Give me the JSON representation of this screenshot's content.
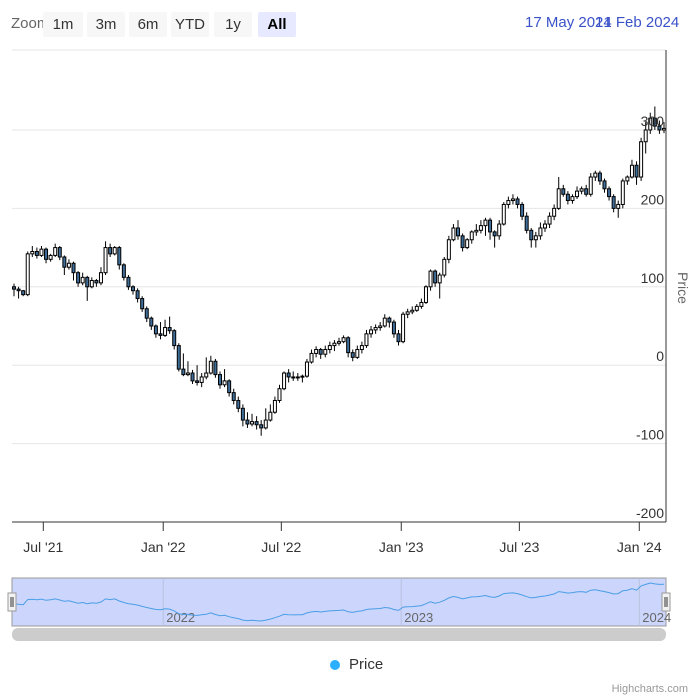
{
  "range_selector": {
    "zoom_label": "Zoom",
    "buttons": [
      {
        "label": "1m"
      },
      {
        "label": "3m"
      },
      {
        "label": "6m"
      },
      {
        "label": "YTD"
      },
      {
        "label": "1y"
      },
      {
        "label": "All",
        "selected": true
      }
    ],
    "from": "17 May 2021",
    "to": "14 Feb 2024"
  },
  "legend": {
    "label": "Price",
    "color": "#2caffe"
  },
  "credits": "Highcharts.com",
  "colors": {
    "up": "#ffffff",
    "down": "#3f6e9a",
    "grid": "#e6e6e6",
    "navigator_fill": "#ccd6fc",
    "navigator_line": "#4a9ee6"
  },
  "chart_data": {
    "type": "candlestick",
    "series_name": "Price",
    "interval": "week",
    "start": "17 May 2021",
    "end": "14 Feb 2024",
    "ylabel": "Price",
    "ylim": [
      -200,
      402
    ],
    "yticks": [
      -200,
      -100,
      0,
      100,
      200,
      300
    ],
    "ytick_labels": [
      "-200",
      "-100",
      "0",
      "100",
      "200",
      "300"
    ],
    "xticks": [
      {
        "label": "Jul '21",
        "week": 6.4
      },
      {
        "label": "Jan '22",
        "week": 32.6
      },
      {
        "label": "Jul '22",
        "week": 58.4
      },
      {
        "label": "Jan '23",
        "week": 84.6
      },
      {
        "label": "Jul '23",
        "week": 110.4
      },
      {
        "label": "Jan '24",
        "week": 136.6
      }
    ],
    "navigator_ticks": [
      {
        "label": "2022",
        "week": 32.6
      },
      {
        "label": "2023",
        "week": 84.6
      },
      {
        "label": "2024",
        "week": 136.6
      }
    ],
    "ohlc": [
      [
        100,
        104,
        88,
        97
      ],
      [
        97,
        100,
        85,
        95
      ],
      [
        95,
        96,
        88,
        90
      ],
      [
        90,
        145,
        88,
        142
      ],
      [
        142,
        152,
        138,
        145
      ],
      [
        145,
        150,
        136,
        140
      ],
      [
        140,
        152,
        138,
        148
      ],
      [
        148,
        150,
        130,
        135
      ],
      [
        135,
        142,
        132,
        140
      ],
      [
        140,
        155,
        138,
        150
      ],
      [
        150,
        152,
        134,
        138
      ],
      [
        138,
        140,
        115,
        125
      ],
      [
        125,
        135,
        122,
        130
      ],
      [
        130,
        132,
        108,
        118
      ],
      [
        118,
        120,
        100,
        105
      ],
      [
        105,
        118,
        102,
        112
      ],
      [
        112,
        114,
        82,
        100
      ],
      [
        100,
        112,
        98,
        108
      ],
      [
        108,
        110,
        100,
        105
      ],
      [
        105,
        125,
        102,
        118
      ],
      [
        118,
        158,
        115,
        150
      ],
      [
        150,
        155,
        138,
        142
      ],
      [
        142,
        152,
        140,
        150
      ],
      [
        150,
        152,
        122,
        128
      ],
      [
        128,
        130,
        108,
        112
      ],
      [
        112,
        115,
        96,
        100
      ],
      [
        100,
        102,
        90,
        95
      ],
      [
        95,
        98,
        80,
        85
      ],
      [
        85,
        88,
        68,
        72
      ],
      [
        72,
        75,
        55,
        60
      ],
      [
        60,
        62,
        45,
        50
      ],
      [
        50,
        52,
        35,
        40
      ],
      [
        40,
        55,
        33,
        38
      ],
      [
        38,
        58,
        36,
        48
      ],
      [
        48,
        62,
        40,
        44
      ],
      [
        44,
        46,
        20,
        25
      ],
      [
        25,
        28,
        -8,
        -5
      ],
      [
        -5,
        15,
        -14,
        -12
      ],
      [
        -12,
        5,
        -14,
        -10
      ],
      [
        -10,
        -6,
        -24,
        -20
      ],
      [
        -20,
        0,
        -26,
        -22
      ],
      [
        -22,
        -10,
        -28,
        -15
      ],
      [
        -15,
        10,
        -18,
        -10
      ],
      [
        -10,
        12,
        -12,
        5
      ],
      [
        5,
        8,
        -16,
        -12
      ],
      [
        -12,
        -8,
        -30,
        -25
      ],
      [
        -25,
        -5,
        -28,
        -20
      ],
      [
        -20,
        -18,
        -40,
        -35
      ],
      [
        -35,
        -30,
        -50,
        -45
      ],
      [
        -45,
        -40,
        -60,
        -55
      ],
      [
        -55,
        -50,
        -78,
        -70
      ],
      [
        -70,
        -60,
        -80,
        -75
      ],
      [
        -75,
        -62,
        -78,
        -72
      ],
      [
        -72,
        -65,
        -82,
        -76
      ],
      [
        -76,
        -70,
        -90,
        -80
      ],
      [
        -80,
        -55,
        -82,
        -70
      ],
      [
        -70,
        -50,
        -72,
        -60
      ],
      [
        -60,
        -40,
        -62,
        -45
      ],
      [
        -45,
        -25,
        -48,
        -30
      ],
      [
        -30,
        -8,
        -32,
        -10
      ],
      [
        -10,
        -5,
        -22,
        -15
      ],
      [
        -15,
        -8,
        -20,
        -16
      ],
      [
        -16,
        -10,
        -20,
        -15
      ],
      [
        -15,
        -12,
        -22,
        -14
      ],
      [
        -14,
        8,
        -16,
        4
      ],
      [
        4,
        20,
        2,
        15
      ],
      [
        15,
        24,
        10,
        20
      ],
      [
        20,
        22,
        8,
        14
      ],
      [
        14,
        25,
        10,
        20
      ],
      [
        20,
        30,
        15,
        25
      ],
      [
        25,
        32,
        18,
        28
      ],
      [
        28,
        35,
        25,
        30
      ],
      [
        30,
        38,
        28,
        35
      ],
      [
        35,
        37,
        10,
        16
      ],
      [
        16,
        20,
        5,
        10
      ],
      [
        10,
        25,
        8,
        20
      ],
      [
        20,
        30,
        15,
        25
      ],
      [
        25,
        45,
        22,
        40
      ],
      [
        40,
        50,
        35,
        45
      ],
      [
        45,
        52,
        40,
        48
      ],
      [
        48,
        55,
        44,
        50
      ],
      [
        50,
        65,
        48,
        60
      ],
      [
        60,
        62,
        48,
        55
      ],
      [
        55,
        58,
        35,
        40
      ],
      [
        40,
        45,
        25,
        30
      ],
      [
        30,
        68,
        28,
        65
      ],
      [
        65,
        72,
        60,
        68
      ],
      [
        68,
        75,
        65,
        70
      ],
      [
        70,
        78,
        68,
        75
      ],
      [
        75,
        85,
        72,
        80
      ],
      [
        80,
        102,
        78,
        100
      ],
      [
        100,
        122,
        95,
        120
      ],
      [
        120,
        122,
        100,
        105
      ],
      [
        105,
        118,
        85,
        115
      ],
      [
        115,
        138,
        112,
        135
      ],
      [
        135,
        165,
        130,
        160
      ],
      [
        160,
        180,
        158,
        175
      ],
      [
        175,
        185,
        160,
        165
      ],
      [
        165,
        168,
        145,
        150
      ],
      [
        150,
        162,
        148,
        160
      ],
      [
        160,
        172,
        155,
        170
      ],
      [
        170,
        180,
        165,
        172
      ],
      [
        172,
        185,
        168,
        178
      ],
      [
        178,
        188,
        165,
        185
      ],
      [
        185,
        188,
        160,
        170
      ],
      [
        170,
        172,
        150,
        165
      ],
      [
        165,
        185,
        160,
        180
      ],
      [
        180,
        208,
        178,
        205
      ],
      [
        205,
        215,
        200,
        210
      ],
      [
        210,
        218,
        205,
        212
      ],
      [
        212,
        215,
        200,
        205
      ],
      [
        205,
        208,
        185,
        190
      ],
      [
        190,
        195,
        168,
        172
      ],
      [
        172,
        175,
        150,
        160
      ],
      [
        160,
        170,
        150,
        165
      ],
      [
        165,
        182,
        160,
        175
      ],
      [
        175,
        185,
        170,
        180
      ],
      [
        180,
        195,
        175,
        190
      ],
      [
        190,
        205,
        185,
        200
      ],
      [
        200,
        240,
        198,
        225
      ],
      [
        225,
        230,
        215,
        218
      ],
      [
        218,
        222,
        205,
        210
      ],
      [
        210,
        218,
        206,
        215
      ],
      [
        215,
        228,
        212,
        222
      ],
      [
        222,
        228,
        218,
        225
      ],
      [
        225,
        230,
        215,
        218
      ],
      [
        218,
        245,
        215,
        240
      ],
      [
        240,
        248,
        235,
        245
      ],
      [
        245,
        248,
        230,
        235
      ],
      [
        235,
        238,
        220,
        225
      ],
      [
        225,
        228,
        210,
        215
      ],
      [
        215,
        218,
        195,
        200
      ],
      [
        200,
        210,
        188,
        205
      ],
      [
        205,
        238,
        200,
        235
      ],
      [
        235,
        242,
        230,
        240
      ],
      [
        240,
        262,
        238,
        255
      ],
      [
        255,
        260,
        230,
        240
      ],
      [
        240,
        290,
        235,
        285
      ],
      [
        285,
        310,
        270,
        300
      ],
      [
        300,
        322,
        295,
        315
      ],
      [
        315,
        330,
        300,
        305
      ],
      [
        305,
        312,
        295,
        300
      ],
      [
        300,
        310,
        296,
        302
      ]
    ]
  }
}
